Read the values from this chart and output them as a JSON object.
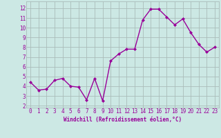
{
  "x": [
    0,
    1,
    2,
    3,
    4,
    5,
    6,
    7,
    8,
    9,
    10,
    11,
    12,
    13,
    14,
    15,
    16,
    17,
    18,
    19,
    20,
    21,
    22,
    23
  ],
  "y": [
    4.4,
    3.6,
    3.7,
    4.6,
    4.8,
    4.0,
    3.9,
    2.6,
    4.8,
    2.5,
    6.6,
    7.3,
    7.8,
    7.8,
    10.8,
    11.9,
    11.9,
    11.1,
    10.3,
    10.9,
    9.5,
    8.3,
    7.5,
    8.0
  ],
  "line_color": "#990099",
  "marker": "D",
  "marker_size": 2.0,
  "line_width": 1.0,
  "bg_color": "#cce8e4",
  "grid_color": "#aabcba",
  "xlabel": "Windchill (Refroidissement éolien,°C)",
  "xlabel_color": "#990099",
  "tick_color": "#990099",
  "ylabel_ticks": [
    2,
    3,
    4,
    5,
    6,
    7,
    8,
    9,
    10,
    11,
    12
  ],
  "xlim": [
    -0.5,
    23.5
  ],
  "ylim": [
    1.8,
    12.7
  ],
  "xtick_labels": [
    "0",
    "1",
    "2",
    "3",
    "4",
    "5",
    "6",
    "7",
    "8",
    "9",
    "10",
    "11",
    "12",
    "13",
    "14",
    "15",
    "16",
    "17",
    "18",
    "19",
    "20",
    "21",
    "22",
    "23"
  ],
  "tick_fontsize": 5.5,
  "xlabel_fontsize": 5.5
}
